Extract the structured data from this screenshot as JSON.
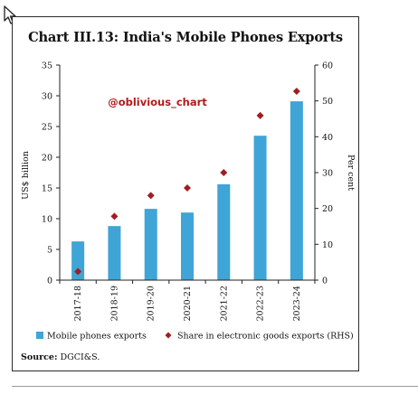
{
  "chart_data": {
    "type": "bar",
    "title": "Chart III.13: India's Mobile Phones Exports",
    "categories": [
      "2017-18",
      "2018-19",
      "2019-20",
      "2020-21",
      "2021-22",
      "2022-23",
      "2023-24"
    ],
    "series": [
      {
        "name": "Mobile phones exports",
        "type": "bar",
        "axis": "left",
        "color": "#3fa4d6",
        "values": [
          6.3,
          8.8,
          11.6,
          11.0,
          15.6,
          23.5,
          29.1
        ]
      },
      {
        "name": "Share in electronic goods exports (RHS)",
        "type": "scatter",
        "marker": "diamond",
        "axis": "right",
        "color": "#a11d22",
        "values": [
          2.4,
          17.8,
          23.6,
          25.7,
          30.0,
          45.9,
          52.7
        ]
      }
    ],
    "ylabel": "US$ billion",
    "y2label": "Per cent",
    "ylim": [
      0,
      35
    ],
    "y2lim": [
      0,
      60
    ],
    "yticks": [
      "0",
      "5",
      "10",
      "15",
      "20",
      "25",
      "30",
      "35"
    ],
    "y2ticks": [
      "0",
      "10",
      "20",
      "30",
      "40",
      "50",
      "60"
    ],
    "legend_position": "bottom",
    "grid": false
  },
  "watermark": "@oblivious_chart",
  "source": {
    "label": "Source:",
    "text": "DGCI&S."
  },
  "colors": {
    "bar": "#3fa4d6",
    "marker": "#a11d22",
    "watermark": "#b01c1c"
  }
}
